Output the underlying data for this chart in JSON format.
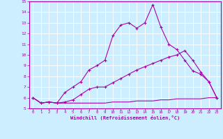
{
  "xlabel": "Windchill (Refroidissement éolien,°C)",
  "xlim": [
    -0.5,
    23.5
  ],
  "ylim": [
    5,
    15
  ],
  "yticks": [
    5,
    6,
    7,
    8,
    9,
    10,
    11,
    12,
    13,
    14,
    15
  ],
  "xticks": [
    0,
    1,
    2,
    3,
    4,
    5,
    6,
    7,
    8,
    9,
    10,
    11,
    12,
    13,
    14,
    15,
    16,
    17,
    18,
    19,
    20,
    21,
    22,
    23
  ],
  "bg_color": "#cceeff",
  "line_color": "#aa00aa",
  "grid_color": "#ffffff",
  "line1_x": [
    0,
    1,
    2,
    3,
    4,
    5,
    6,
    7,
    8,
    9,
    10,
    11,
    12,
    13,
    14,
    15,
    16,
    17,
    18,
    19,
    20,
    21,
    22,
    23
  ],
  "line1_y": [
    6.0,
    5.5,
    5.6,
    5.5,
    5.5,
    5.5,
    5.5,
    5.5,
    5.5,
    5.5,
    5.6,
    5.6,
    5.6,
    5.7,
    5.7,
    5.7,
    5.8,
    5.8,
    5.9,
    5.9,
    5.9,
    5.9,
    6.0,
    6.0
  ],
  "line2_x": [
    0,
    1,
    2,
    3,
    4,
    5,
    6,
    7,
    8,
    9,
    10,
    11,
    12,
    13,
    14,
    15,
    16,
    17,
    18,
    19,
    20,
    21,
    22,
    23
  ],
  "line2_y": [
    6.0,
    5.5,
    5.6,
    5.5,
    5.6,
    5.8,
    6.3,
    6.8,
    7.0,
    7.0,
    7.4,
    7.8,
    8.2,
    8.6,
    8.9,
    9.2,
    9.5,
    9.8,
    10.0,
    10.4,
    9.5,
    8.4,
    7.5,
    6.0
  ],
  "line3_x": [
    0,
    1,
    2,
    3,
    4,
    5,
    6,
    7,
    8,
    9,
    10,
    11,
    12,
    13,
    14,
    15,
    16,
    17,
    18,
    19,
    20,
    21,
    22,
    23
  ],
  "line3_y": [
    6.0,
    5.5,
    5.6,
    5.5,
    6.5,
    7.0,
    7.5,
    8.6,
    9.0,
    9.5,
    11.8,
    12.8,
    13.0,
    12.5,
    13.0,
    14.7,
    12.6,
    11.0,
    10.5,
    9.5,
    8.5,
    8.2,
    7.5,
    6.0
  ]
}
